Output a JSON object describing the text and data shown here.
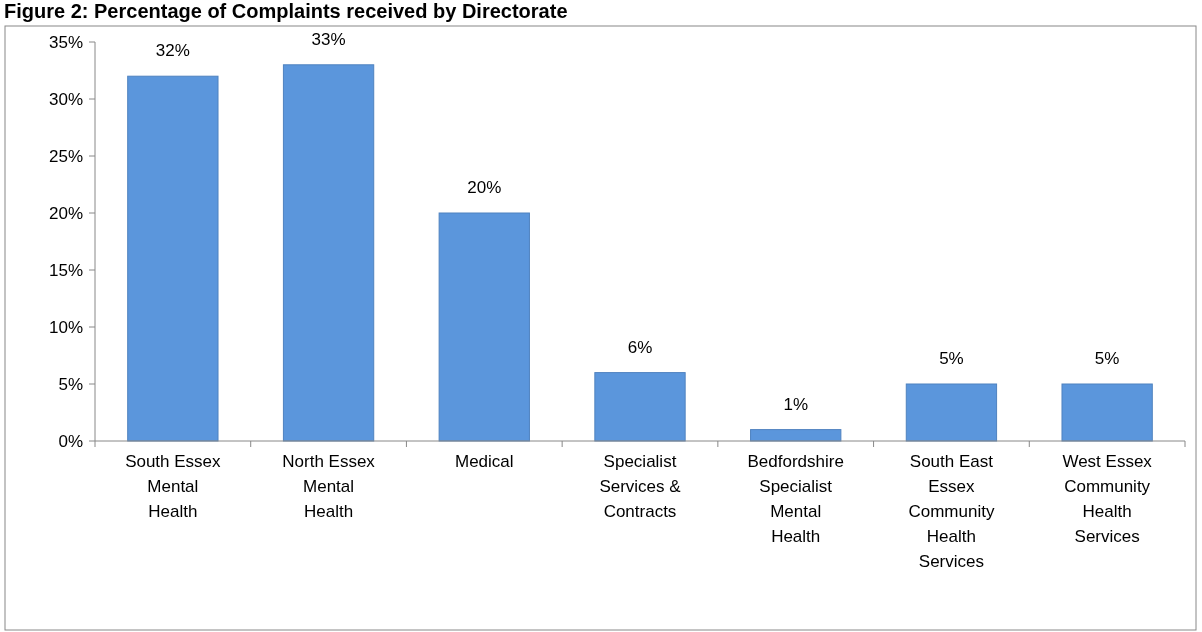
{
  "chart_data": {
    "type": "bar",
    "title": "Figure 2: Percentage of Complaints received by Directorate",
    "categories": [
      "South Essex Mental Health",
      "North Essex Mental Health",
      "Medical",
      "Specialist Services & Contracts",
      "Bedfordshire Specialist Mental Health",
      "South East Essex Community Health Services",
      "West Essex Community Health Services"
    ],
    "values": [
      32,
      33,
      20,
      6,
      1,
      5,
      5
    ],
    "value_labels": [
      "32%",
      "33%",
      "20%",
      "6%",
      "1%",
      "5%",
      "5%"
    ],
    "color": "#5b96dc",
    "ylim": [
      0,
      35
    ],
    "yticks": [
      {
        "value": 0,
        "label": "0%"
      },
      {
        "value": 5,
        "label": "5%"
      },
      {
        "value": 10,
        "label": "10%"
      },
      {
        "value": 15,
        "label": "15%"
      },
      {
        "value": 20,
        "label": "20%"
      },
      {
        "value": 25,
        "label": "25%"
      },
      {
        "value": 30,
        "label": "30%"
      },
      {
        "value": 35,
        "label": "35%"
      }
    ],
    "grid": false
  }
}
